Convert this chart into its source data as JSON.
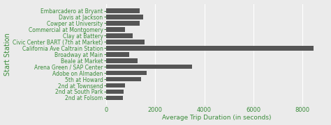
{
  "stations": [
    "Embarcadero at Bryant",
    "Davis at Jackson",
    "Cowper at University",
    "Commercial at Montgomery",
    "Clay at Battery",
    "Civic Center BART (7th at Market)",
    "California Ave Caltrain Station",
    "Broadway at Main",
    "Beale at Market",
    "Arena Green / SAP Center",
    "Adobe on Almaden",
    "5th at Howard",
    "2nd at Townsend",
    "2nd at South Park",
    "2nd at Folsom"
  ],
  "values": [
    1380,
    1500,
    1380,
    780,
    1100,
    1580,
    8450,
    950,
    1280,
    3500,
    1650,
    1420,
    780,
    720,
    700
  ],
  "bar_color": "#555555",
  "background_color": "#ebebeb",
  "grid_color": "#ffffff",
  "xlabel": "Average Trip Duration (in seconds)",
  "ylabel": "Start Station",
  "label_color": "#3a8c3a",
  "xlim": [
    0,
    9000
  ],
  "xticks": [
    0,
    2000,
    4000,
    6000,
    8000
  ],
  "bar_height": 0.75,
  "fontsize_yticks": 5.5,
  "fontsize_xticks": 6.0,
  "fontsize_xlabel": 6.5,
  "fontsize_ylabel": 7.0
}
